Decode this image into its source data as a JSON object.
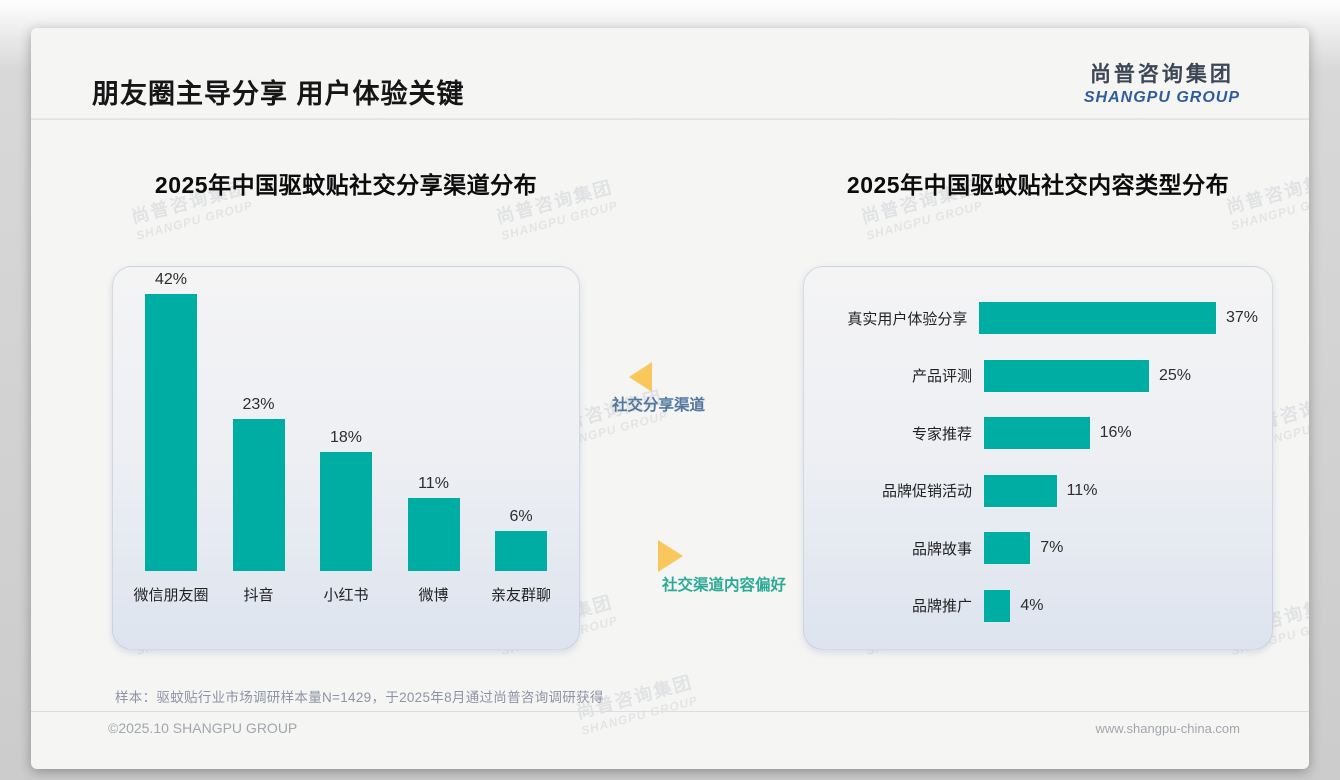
{
  "slide": {
    "title": "朋友圈主导分享 用户体验关键",
    "logo": {
      "cn": "尚普咨询集团",
      "en": "SHANGPU GROUP"
    },
    "footnote": "样本：驱蚊贴行业市场调研样本量N=1429，于2025年8月通过尚普咨询调研获得",
    "footer_left": "©2025.10 SHANGPU GROUP",
    "footer_right": "www.shangpu-china.com",
    "watermark": {
      "line1": "尚普咨询集团",
      "line2": "SHANGPU GROUP"
    }
  },
  "annotations": [
    {
      "label": "社交分享渠道",
      "color": "#53779f",
      "arrow": "left"
    },
    {
      "label": "社交渠道内容偏好",
      "color": "#2bab96",
      "arrow": "right"
    }
  ],
  "colors": {
    "bar": "#00ada3",
    "arrow": "#f9c75c"
  },
  "chart_data": [
    {
      "type": "bar",
      "orientation": "vertical",
      "title": "2025年中国驱蚊贴社交分享渠道分布",
      "categories": [
        "微信朋友圈",
        "抖音",
        "小红书",
        "微博",
        "亲友群聊"
      ],
      "values": [
        42,
        23,
        18,
        11,
        6
      ],
      "unit": "%",
      "xlabel": "",
      "ylabel": "",
      "ylim": [
        0,
        45
      ],
      "grid": false,
      "legend": "none",
      "data_labels": [
        "42%",
        "23%",
        "18%",
        "11%",
        "6%"
      ]
    },
    {
      "type": "bar",
      "orientation": "horizontal",
      "title": "2025年中国驱蚊贴社交内容类型分布",
      "categories": [
        "真实用户体验分享",
        "产品评测",
        "专家推荐",
        "品牌促销活动",
        "品牌故事",
        "品牌推广"
      ],
      "values": [
        37,
        25,
        16,
        11,
        7,
        4
      ],
      "unit": "%",
      "xlabel": "",
      "ylabel": "",
      "xlim": [
        0,
        40
      ],
      "grid": false,
      "legend": "none",
      "data_labels": [
        "37%",
        "25%",
        "16%",
        "11%",
        "7%",
        "4%"
      ]
    }
  ]
}
